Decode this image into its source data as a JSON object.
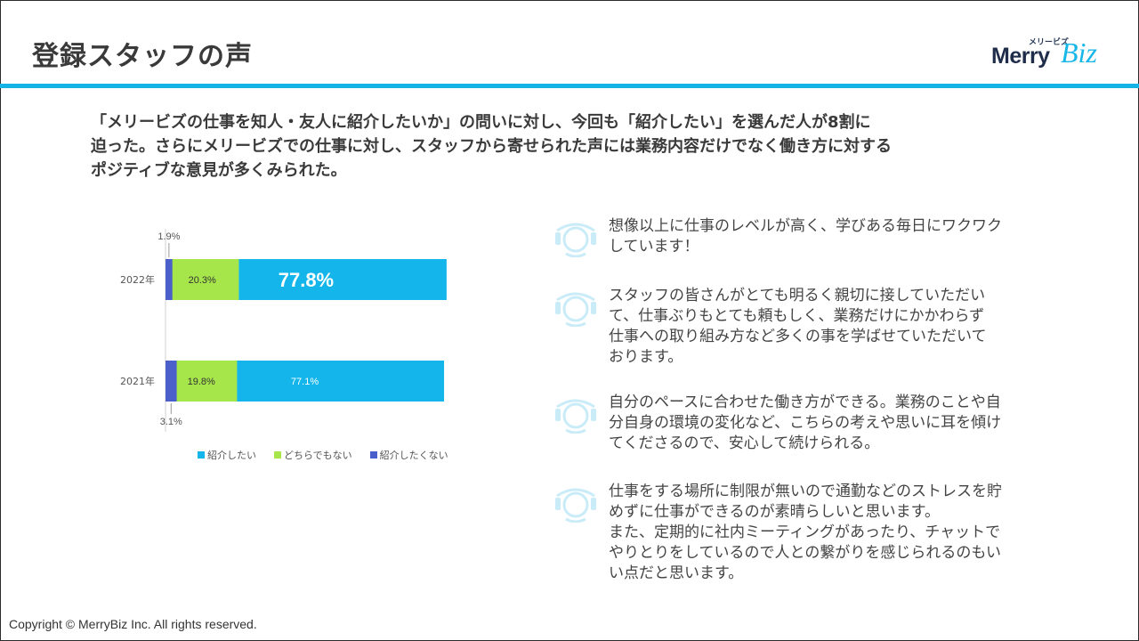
{
  "page": {
    "title": "登録スタッフの声",
    "copyright": "Copyright © MerryBiz Inc. All rights reserved."
  },
  "logo": {
    "kana": "メリービズ",
    "word1": "Merry",
    "word2": "Biz"
  },
  "intro": {
    "lines": [
      "「メリービズの仕事を知人・友人に紹介したいか」の問いに対し、今回も「紹介したい」を選んだ人が8割に",
      "迫った。さらにメリービズでの仕事に対し、スタッフから寄せられた声には業務内容だけでなく働き方に対する",
      "ポジティブな意見が多くみられた。"
    ]
  },
  "chart_data": {
    "type": "bar",
    "orientation": "horizontal",
    "stacked": true,
    "normalized": true,
    "categories": [
      "2022年",
      "2021年"
    ],
    "series": [
      {
        "name": "紹介したい",
        "values": [
          77.8,
          77.1
        ],
        "labels": [
          "77.8%",
          "77.1%"
        ],
        "color": "#13b5ea",
        "label_color": "#ffffff"
      },
      {
        "name": "どちらでもない",
        "values": [
          20.3,
          19.8
        ],
        "labels": [
          "20.3%",
          "19.8%"
        ],
        "color": "#a6e64b",
        "label_color": "#333333"
      },
      {
        "name": "紹介したくない",
        "values": [
          1.9,
          3.1
        ],
        "labels": [
          "1.9%",
          "3.1%"
        ],
        "color": "#4a5fc9",
        "label_color": "#555555"
      }
    ],
    "xlim": [
      0,
      100
    ],
    "grid": false,
    "legend_position": "bottom"
  },
  "comments": [
    {
      "lines": [
        "想像以上に仕事のレベルが高く、学びある毎日にワクワク",
        "しています！"
      ]
    },
    {
      "lines": [
        "スタッフの皆さんがとても明るく親切に接していただい",
        "て、仕事ぶりもとても頼もしく、業務だけにかかわらず",
        "仕事への取り組み方など多くの事を学ばせていただいて",
        "おります。"
      ]
    },
    {
      "lines": [
        "自分のペースに合わせた働き方ができる。業務のことや自",
        "分自身の環境の変化など、こちらの考えや思いに耳を傾け",
        "てくださるので、安心して続けられる。"
      ]
    },
    {
      "lines": [
        "仕事をする場所に制限が無いので通勤などのストレスを貯",
        "めずに仕事ができるのが素晴らしいと思います。",
        "また、定期的に社内ミーティングがあったり、チャットで",
        "やりとりをしているので人との繋がりを感じられるのもい",
        "い点だと思います。"
      ]
    }
  ],
  "icons": {
    "comment": "person-icon"
  },
  "colors": {
    "accent": "#14b3e6",
    "icon": "#c9ecf8"
  }
}
